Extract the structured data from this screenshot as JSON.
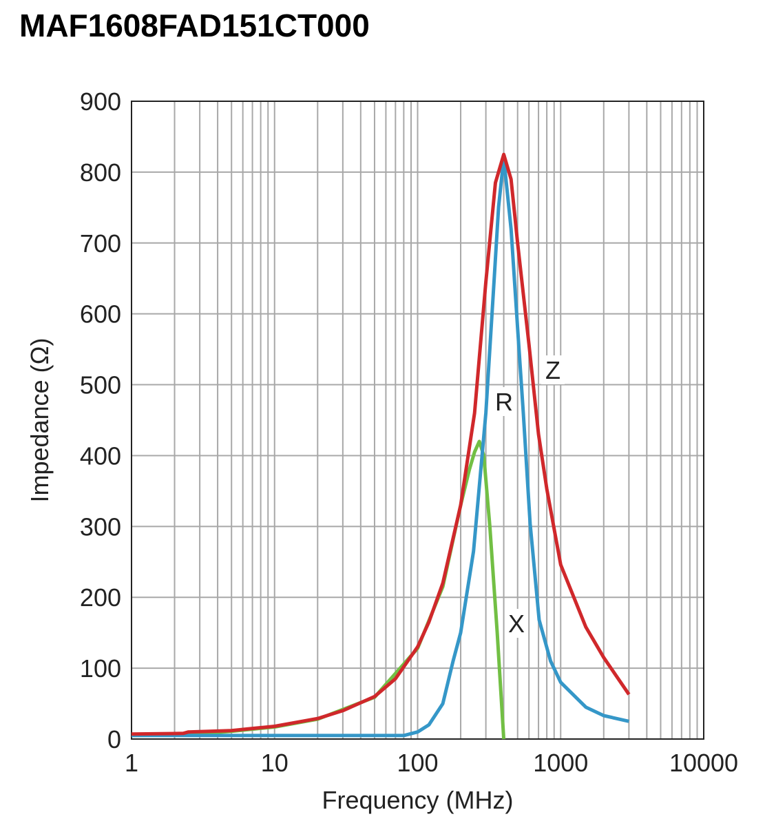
{
  "chart_data": {
    "type": "line",
    "title": "MAF1608FAD151CT000",
    "xlabel": "Frequency (MHz)",
    "ylabel": "Impedance (Ω)",
    "xscale": "log",
    "xlim": [
      1,
      10000
    ],
    "ylim": [
      0,
      900
    ],
    "grid": true,
    "xticks": [
      "1",
      "10",
      "100",
      "1000",
      "10000"
    ],
    "yticks": [
      "0",
      "100",
      "200",
      "300",
      "400",
      "500",
      "600",
      "700",
      "800",
      "900"
    ],
    "series": [
      {
        "name": "Z",
        "color": "#d0282b",
        "points": [
          [
            1,
            7
          ],
          [
            2.3,
            8
          ],
          [
            2.5,
            10
          ],
          [
            5,
            12
          ],
          [
            7,
            15
          ],
          [
            10,
            18
          ],
          [
            20,
            29
          ],
          [
            30,
            40
          ],
          [
            50,
            60
          ],
          [
            70,
            85
          ],
          [
            100,
            130
          ],
          [
            120,
            165
          ],
          [
            150,
            220
          ],
          [
            200,
            330
          ],
          [
            250,
            460
          ],
          [
            300,
            645
          ],
          [
            350,
            785
          ],
          [
            400,
            825
          ],
          [
            450,
            790
          ],
          [
            500,
            700
          ],
          [
            600,
            557
          ],
          [
            700,
            430
          ],
          [
            800,
            353
          ],
          [
            1000,
            246
          ],
          [
            1500,
            158
          ],
          [
            2000,
            115
          ],
          [
            3000,
            63
          ]
        ]
      },
      {
        "name": "R",
        "color": "#3597c8",
        "points": [
          [
            1,
            5
          ],
          [
            80,
            5
          ],
          [
            100,
            10
          ],
          [
            120,
            20
          ],
          [
            150,
            50
          ],
          [
            177,
            110
          ],
          [
            200,
            150
          ],
          [
            246,
            265
          ],
          [
            300,
            460
          ],
          [
            344,
            654
          ],
          [
            368,
            751
          ],
          [
            400,
            820
          ],
          [
            450,
            720
          ],
          [
            500,
            580
          ],
          [
            548,
            460
          ],
          [
            612,
            304
          ],
          [
            707,
            168
          ],
          [
            850,
            110
          ],
          [
            1000,
            80
          ],
          [
            1500,
            45
          ],
          [
            2000,
            33
          ],
          [
            3000,
            25
          ]
        ]
      },
      {
        "name": "X",
        "color": "#72bf44",
        "points": [
          [
            1,
            5
          ],
          [
            2.5,
            6
          ],
          [
            5,
            11
          ],
          [
            10,
            17
          ],
          [
            20,
            28
          ],
          [
            50,
            59
          ],
          [
            100,
            128
          ],
          [
            150,
            215
          ],
          [
            200,
            330
          ],
          [
            230,
            380
          ],
          [
            250,
            405
          ],
          [
            270,
            420
          ],
          [
            290,
            400
          ],
          [
            320,
            300
          ],
          [
            360,
            150
          ],
          [
            400,
            0
          ]
        ]
      }
    ]
  }
}
